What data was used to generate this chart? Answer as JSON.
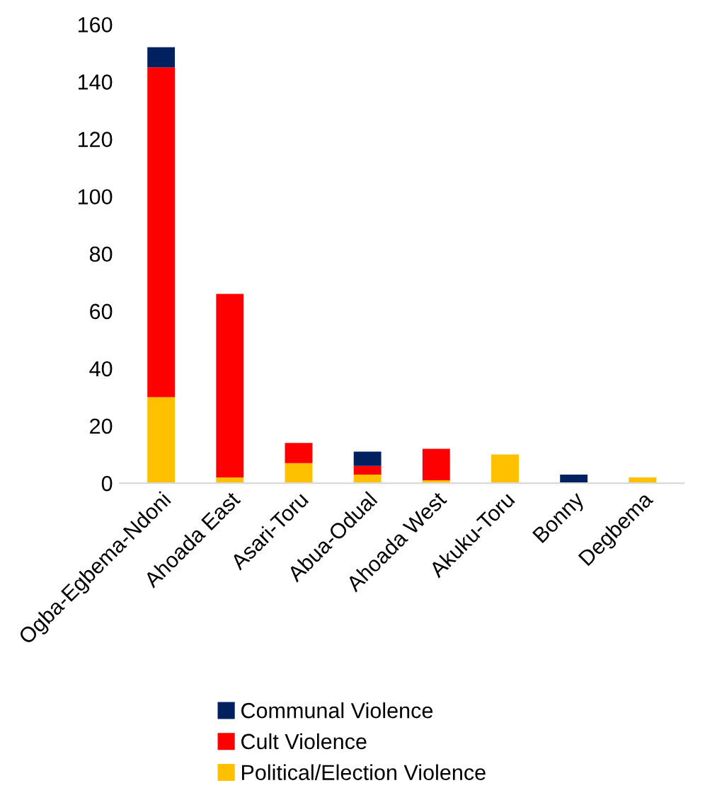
{
  "chart_data": {
    "type": "bar",
    "stacked": true,
    "categories": [
      "Ogba-Egbema-Ndoni",
      "Ahoada East",
      "Asari-Toru",
      "Abua-Odual",
      "Ahoada West",
      "Akuku-Toru",
      "Bonny",
      "Degbema"
    ],
    "series": [
      {
        "name": "Political/Election Violence",
        "color": "#ffc000",
        "values": [
          30,
          2,
          7,
          3,
          1,
          10,
          0,
          2
        ]
      },
      {
        "name": "Cult Violence",
        "color": "#ff0000",
        "values": [
          115,
          64,
          7,
          3,
          11,
          0,
          0,
          0
        ]
      },
      {
        "name": "Communal Violence",
        "color": "#002060",
        "values": [
          7,
          0,
          0,
          5,
          0,
          0,
          3,
          0
        ]
      }
    ],
    "ylim": [
      0,
      160
    ],
    "yticks": [
      0,
      20,
      40,
      60,
      80,
      100,
      120,
      140,
      160
    ],
    "grid": false,
    "legend": "bottom"
  }
}
